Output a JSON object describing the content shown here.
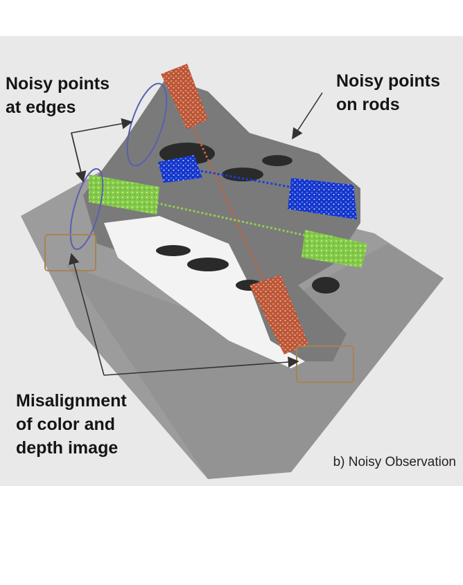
{
  "figure": {
    "annotations": {
      "edges_line1": "Noisy points",
      "edges_line2": "at edges",
      "rods_line1": "Noisy points",
      "rods_line2": "on rods",
      "misalign_line1": "Misalignment",
      "misalign_line2": "of color and",
      "misalign_line3": "depth image"
    },
    "caption": "b) Noisy Observation"
  },
  "colors": {
    "background": "#e9e9e9",
    "ground": "#9a9a9a",
    "rod_orange": "#c4623a",
    "rod_blue": "#1a3fd6",
    "rod_green": "#8fd14f",
    "edge_ellipse": "#5a5fb0",
    "misalign_box": "#a78352",
    "arrow": "#333333"
  }
}
